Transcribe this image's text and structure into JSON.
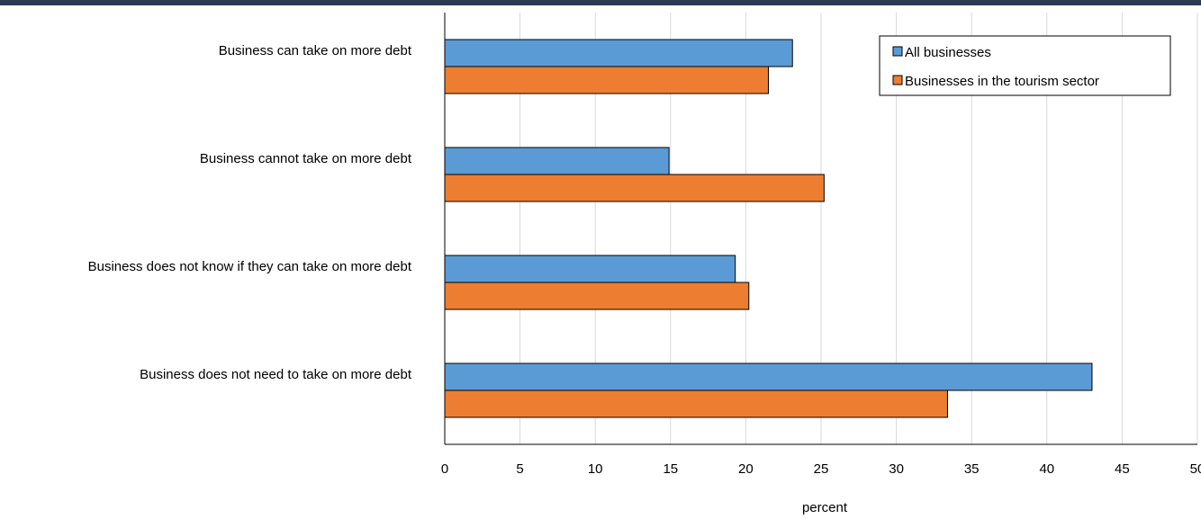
{
  "chart_data": {
    "type": "bar",
    "orientation": "horizontal",
    "categories": [
      "Business can take on more debt",
      "Business cannot take on more debt",
      "Business does not know if they can take on more debt",
      "Business does not need to take on more debt"
    ],
    "series": [
      {
        "name": "All businesses",
        "color": "#5b9bd5",
        "values": [
          23.1,
          14.9,
          19.3,
          43.0
        ]
      },
      {
        "name": "Businesses in the tourism sector",
        "color": "#ed7d31",
        "values": [
          21.5,
          25.2,
          20.2,
          33.4
        ]
      }
    ],
    "xlabel": "percent",
    "xlim": [
      0,
      50
    ],
    "xticks": [
      0,
      5,
      10,
      15,
      20,
      25,
      30,
      35,
      40,
      45,
      50
    ],
    "grid": "vertical",
    "legend_position": "top-right"
  }
}
